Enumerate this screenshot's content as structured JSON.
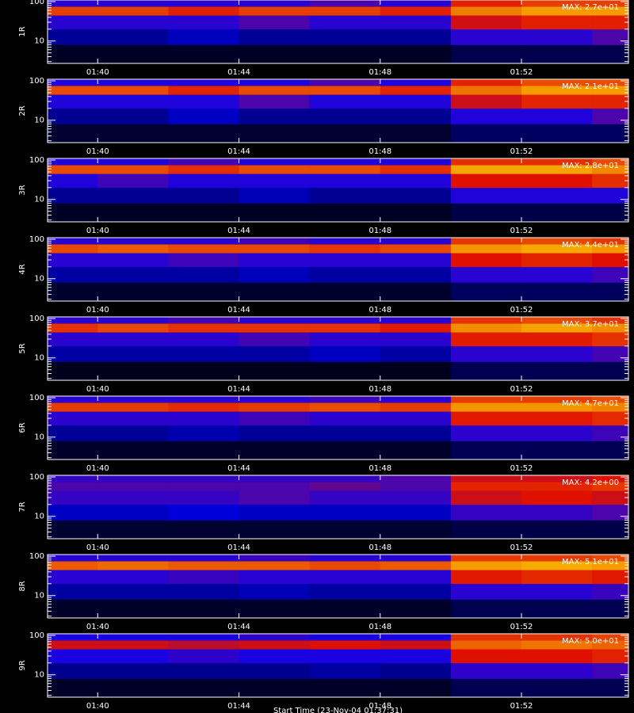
{
  "chart_data": [
    {
      "type": "heatmap",
      "ylabel": "1R",
      "max": {
        "value": 27,
        "label": "MAX: 2.7e+01"
      },
      "log_y": true,
      "colormap": [
        "#000000",
        "#0000ff",
        "#e01000",
        "#ffe000",
        "#ffffff"
      ],
      "xlim": [
        98.58,
        115.03
      ],
      "xticks": [
        {
          "value": 100,
          "label": "01:40"
        },
        {
          "value": 104,
          "label": "01:44"
        },
        {
          "value": 108,
          "label": "01:48"
        },
        {
          "value": 112,
          "label": "01:52"
        }
      ],
      "ylim": [
        2.7,
        110
      ],
      "yticks": [
        10,
        100
      ],
      "yminor": [
        3,
        4,
        5,
        6,
        7,
        8,
        9,
        20,
        30,
        40,
        50,
        60,
        70,
        80,
        90
      ],
      "xbins": [
        98.58,
        100,
        102,
        104,
        106,
        108,
        110,
        112,
        114,
        115.03
      ],
      "ybins": [
        2.7,
        8,
        20,
        45,
        75,
        110
      ],
      "z": [
        [
          1,
          1,
          1,
          1,
          1,
          1,
          2,
          2,
          2
        ],
        [
          4,
          4,
          5,
          4,
          4,
          4,
          8,
          8,
          9
        ],
        [
          8,
          8,
          8,
          9,
          8,
          8,
          13,
          14,
          14
        ],
        [
          15,
          15,
          14,
          15,
          15,
          14,
          17,
          18,
          18
        ],
        [
          8,
          8,
          8,
          8,
          9,
          8,
          14,
          15,
          15
        ]
      ]
    },
    {
      "type": "heatmap",
      "ylabel": "2R",
      "max": {
        "value": 21,
        "label": "MAX: 2.1e+01"
      },
      "log_y": true,
      "colormap": [
        "#000000",
        "#0000ff",
        "#e01000",
        "#ffe000",
        "#ffffff"
      ],
      "xlim": [
        98.58,
        115.03
      ],
      "xticks": [
        {
          "value": 100,
          "label": "01:40"
        },
        {
          "value": 104,
          "label": "01:44"
        },
        {
          "value": 108,
          "label": "01:48"
        },
        {
          "value": 112,
          "label": "01:52"
        }
      ],
      "ylim": [
        2.7,
        110
      ],
      "yticks": [
        10,
        100
      ],
      "yminor": [
        3,
        4,
        5,
        6,
        7,
        8,
        9,
        20,
        30,
        40,
        50,
        60,
        70,
        80,
        90
      ],
      "xbins": [
        98.58,
        100,
        102,
        104,
        106,
        108,
        110,
        112,
        114,
        115.03
      ],
      "ybins": [
        2.7,
        8,
        20,
        45,
        75,
        110
      ],
      "z": [
        [
          1,
          1,
          1,
          1,
          1,
          1,
          2,
          2,
          2
        ],
        [
          3,
          3,
          4,
          3,
          3,
          3,
          6,
          6,
          7
        ],
        [
          6,
          6,
          6,
          7,
          6,
          6,
          10,
          11,
          11
        ],
        [
          12,
          12,
          11,
          12,
          12,
          11,
          13,
          14,
          14
        ],
        [
          6,
          6,
          6,
          6,
          7,
          6,
          11,
          12,
          12
        ]
      ]
    },
    {
      "type": "heatmap",
      "ylabel": "3R",
      "max": {
        "value": 28,
        "label": "MAX: 2.8e+01"
      },
      "log_y": true,
      "colormap": [
        "#000000",
        "#0000ff",
        "#e01000",
        "#ffe000",
        "#ffffff"
      ],
      "xlim": [
        98.58,
        115.03
      ],
      "xticks": [
        {
          "value": 100,
          "label": "01:40"
        },
        {
          "value": 104,
          "label": "01:44"
        },
        {
          "value": 108,
          "label": "01:48"
        },
        {
          "value": 112,
          "label": "01:52"
        }
      ],
      "ylim": [
        2.7,
        110
      ],
      "yticks": [
        10,
        100
      ],
      "yminor": [
        3,
        4,
        5,
        6,
        7,
        8,
        9,
        20,
        30,
        40,
        50,
        60,
        70,
        80,
        90
      ],
      "xbins": [
        98.58,
        100,
        102,
        104,
        106,
        108,
        110,
        112,
        114,
        115.03
      ],
      "ybins": [
        2.7,
        8,
        20,
        45,
        75,
        110
      ],
      "z": [
        [
          1,
          1,
          1,
          1,
          1,
          1,
          2,
          2,
          2
        ],
        [
          4,
          4,
          4,
          5,
          4,
          4,
          8,
          8,
          8
        ],
        [
          8,
          9,
          8,
          8,
          8,
          8,
          14,
          14,
          15
        ],
        [
          16,
          16,
          15,
          16,
          16,
          15,
          19,
          19,
          18
        ],
        [
          8,
          8,
          9,
          8,
          8,
          8,
          15,
          15,
          16
        ]
      ]
    },
    {
      "type": "heatmap",
      "ylabel": "4R",
      "max": {
        "value": 44,
        "label": "MAX: 4.4e+01"
      },
      "log_y": true,
      "colormap": [
        "#000000",
        "#0000ff",
        "#e01000",
        "#ffe000",
        "#ffffff"
      ],
      "xlim": [
        98.58,
        115.03
      ],
      "xticks": [
        {
          "value": 100,
          "label": "01:40"
        },
        {
          "value": 104,
          "label": "01:44"
        },
        {
          "value": 108,
          "label": "01:48"
        },
        {
          "value": 112,
          "label": "01:52"
        }
      ],
      "ylim": [
        2.7,
        110
      ],
      "yticks": [
        10,
        100
      ],
      "yminor": [
        3,
        4,
        5,
        6,
        7,
        8,
        9,
        20,
        30,
        40,
        50,
        60,
        70,
        80,
        90
      ],
      "xbins": [
        98.58,
        100,
        102,
        104,
        106,
        108,
        110,
        112,
        114,
        115.03
      ],
      "ybins": [
        2.7,
        8,
        20,
        45,
        75,
        110
      ],
      "z": [
        [
          2,
          2,
          2,
          2,
          2,
          2,
          4,
          4,
          4
        ],
        [
          7,
          7,
          7,
          8,
          7,
          7,
          13,
          13,
          14
        ],
        [
          13,
          13,
          14,
          13,
          13,
          13,
          22,
          23,
          22
        ],
        [
          25,
          26,
          25,
          25,
          24,
          25,
          29,
          30,
          29
        ],
        [
          13,
          13,
          13,
          14,
          13,
          13,
          24,
          25,
          24
        ]
      ]
    },
    {
      "type": "heatmap",
      "ylabel": "5R",
      "max": {
        "value": 37,
        "label": "MAX: 3.7e+01"
      },
      "log_y": true,
      "colormap": [
        "#000000",
        "#0000ff",
        "#e01000",
        "#ffe000",
        "#ffffff"
      ],
      "xlim": [
        98.58,
        115.03
      ],
      "xticks": [
        {
          "value": 100,
          "label": "01:40"
        },
        {
          "value": 104,
          "label": "01:44"
        },
        {
          "value": 108,
          "label": "01:48"
        },
        {
          "value": 112,
          "label": "01:52"
        }
      ],
      "ylim": [
        2.7,
        110
      ],
      "yticks": [
        10,
        100
      ],
      "yminor": [
        3,
        4,
        5,
        6,
        7,
        8,
        9,
        20,
        30,
        40,
        50,
        60,
        70,
        80,
        90
      ],
      "xbins": [
        98.58,
        100,
        102,
        104,
        106,
        108,
        110,
        112,
        114,
        115.03
      ],
      "ybins": [
        2.7,
        8,
        20,
        45,
        75,
        110
      ],
      "z": [
        [
          1,
          1,
          1,
          1,
          1,
          1,
          3,
          3,
          3
        ],
        [
          6,
          6,
          6,
          6,
          7,
          6,
          11,
          11,
          12
        ],
        [
          11,
          11,
          11,
          12,
          11,
          11,
          19,
          19,
          20
        ],
        [
          20,
          21,
          20,
          20,
          20,
          19,
          24,
          25,
          24
        ],
        [
          11,
          11,
          12,
          11,
          11,
          11,
          20,
          21,
          20
        ]
      ]
    },
    {
      "type": "heatmap",
      "ylabel": "6R",
      "max": {
        "value": 47,
        "label": "MAX: 4.7e+01"
      },
      "log_y": true,
      "colormap": [
        "#000000",
        "#0000ff",
        "#e01000",
        "#ffe000",
        "#ffffff"
      ],
      "xlim": [
        98.58,
        115.03
      ],
      "xticks": [
        {
          "value": 100,
          "label": "01:40"
        },
        {
          "value": 104,
          "label": "01:44"
        },
        {
          "value": 108,
          "label": "01:48"
        },
        {
          "value": 112,
          "label": "01:52"
        }
      ],
      "ylim": [
        2.7,
        110
      ],
      "yticks": [
        10,
        100
      ],
      "yminor": [
        3,
        4,
        5,
        6,
        7,
        8,
        9,
        20,
        30,
        40,
        50,
        60,
        70,
        80,
        90
      ],
      "xbins": [
        98.58,
        100,
        102,
        104,
        106,
        108,
        110,
        112,
        114,
        115.03
      ],
      "ybins": [
        2.7,
        8,
        20,
        45,
        75,
        110
      ],
      "z": [
        [
          2,
          2,
          2,
          2,
          2,
          2,
          4,
          4,
          4
        ],
        [
          7,
          7,
          8,
          7,
          7,
          7,
          14,
          14,
          15
        ],
        [
          14,
          14,
          14,
          15,
          14,
          14,
          24,
          24,
          25
        ],
        [
          26,
          26,
          25,
          26,
          27,
          26,
          31,
          31,
          30
        ],
        [
          14,
          14,
          14,
          14,
          15,
          14,
          26,
          26,
          27
        ]
      ]
    },
    {
      "type": "heatmap",
      "ylabel": "7R",
      "max": {
        "value": 4.2,
        "label": "MAX: 4.2e+00"
      },
      "log_y": true,
      "colormap": [
        "#000000",
        "#0000ff",
        "#e01000",
        "#ffe000",
        "#ffffff"
      ],
      "xlim": [
        98.58,
        115.03
      ],
      "xticks": [
        {
          "value": 100,
          "label": "01:40"
        },
        {
          "value": 104,
          "label": "01:44"
        },
        {
          "value": 108,
          "label": "01:48"
        },
        {
          "value": 112,
          "label": "01:52"
        }
      ],
      "ylim": [
        2.7,
        110
      ],
      "yticks": [
        10,
        100
      ],
      "yminor": [
        3,
        4,
        5,
        6,
        7,
        8,
        9,
        20,
        30,
        40,
        50,
        60,
        70,
        80,
        90
      ],
      "xbins": [
        98.58,
        100,
        102,
        104,
        106,
        108,
        110,
        112,
        114,
        115.03
      ],
      "ybins": [
        2.7,
        8,
        20,
        45,
        75,
        110
      ],
      "z": [
        [
          0.2,
          0.2,
          0.2,
          0.2,
          0.2,
          0.2,
          0.3,
          0.3,
          0.3
        ],
        [
          0.8,
          0.8,
          0.9,
          0.8,
          0.8,
          0.8,
          1.3,
          1.3,
          1.4
        ],
        [
          1.3,
          1.3,
          1.3,
          1.4,
          1.3,
          1.3,
          2,
          2.1,
          2
        ],
        [
          1.4,
          1.4,
          1.4,
          1.4,
          1.5,
          1.4,
          2.2,
          2.2,
          2.3
        ],
        [
          1.3,
          1.3,
          1.3,
          1.3,
          1.3,
          1.4,
          2,
          2,
          2.1
        ]
      ]
    },
    {
      "type": "heatmap",
      "ylabel": "8R",
      "max": {
        "value": 51,
        "label": "MAX: 5.1e+01"
      },
      "log_y": true,
      "colormap": [
        "#000000",
        "#0000ff",
        "#e01000",
        "#ffe000",
        "#ffffff"
      ],
      "xlim": [
        98.58,
        115.03
      ],
      "xticks": [
        {
          "value": 100,
          "label": "01:40"
        },
        {
          "value": 104,
          "label": "01:44"
        },
        {
          "value": 108,
          "label": "01:48"
        },
        {
          "value": 112,
          "label": "01:52"
        }
      ],
      "ylim": [
        2.7,
        110
      ],
      "yticks": [
        10,
        100
      ],
      "yminor": [
        3,
        4,
        5,
        6,
        7,
        8,
        9,
        20,
        30,
        40,
        50,
        60,
        70,
        80,
        90
      ],
      "xbins": [
        98.58,
        100,
        102,
        104,
        106,
        108,
        110,
        112,
        114,
        115.03
      ],
      "ybins": [
        2.7,
        8,
        20,
        45,
        75,
        110
      ],
      "z": [
        [
          2,
          2,
          2,
          2,
          2,
          2,
          4,
          4,
          4
        ],
        [
          8,
          8,
          8,
          9,
          8,
          8,
          15,
          15,
          16
        ],
        [
          15,
          15,
          16,
          15,
          15,
          15,
          26,
          27,
          26
        ],
        [
          30,
          31,
          30,
          30,
          29,
          30,
          34,
          35,
          34
        ],
        [
          15,
          15,
          15,
          16,
          15,
          15,
          28,
          28,
          29
        ]
      ]
    },
    {
      "type": "heatmap",
      "ylabel": "9R",
      "max": {
        "value": 50,
        "label": "MAX: 5.0e+01"
      },
      "log_y": true,
      "colormap": [
        "#000000",
        "#0000ff",
        "#e01000",
        "#ffe000",
        "#ffffff"
      ],
      "xlim": [
        98.58,
        115.03
      ],
      "xticks": [
        {
          "value": 100,
          "label": "01:40"
        },
        {
          "value": 104,
          "label": "01:44"
        },
        {
          "value": 108,
          "label": "01:48"
        },
        {
          "value": 112,
          "label": "01:52"
        }
      ],
      "ylim": [
        2.7,
        110
      ],
      "yticks": [
        10,
        100
      ],
      "yminor": [
        3,
        4,
        5,
        6,
        7,
        8,
        9,
        20,
        30,
        40,
        50,
        60,
        70,
        80,
        90
      ],
      "xbins": [
        98.58,
        100,
        102,
        104,
        106,
        108,
        110,
        112,
        114,
        115.03
      ],
      "ybins": [
        2.7,
        8,
        20,
        45,
        75,
        110
      ],
      "z": [
        [
          2,
          2,
          2,
          2,
          2,
          2,
          4,
          4,
          4
        ],
        [
          7,
          7,
          7,
          7,
          8,
          7,
          15,
          15,
          16
        ],
        [
          14,
          14,
          15,
          14,
          14,
          14,
          25,
          25,
          26
        ],
        [
          24,
          24,
          23,
          24,
          25,
          24,
          30,
          31,
          30
        ],
        [
          14,
          14,
          14,
          15,
          14,
          14,
          27,
          27,
          28
        ]
      ],
      "xlabel": "Start Time (23-Nov-04 01:37:31)"
    }
  ]
}
